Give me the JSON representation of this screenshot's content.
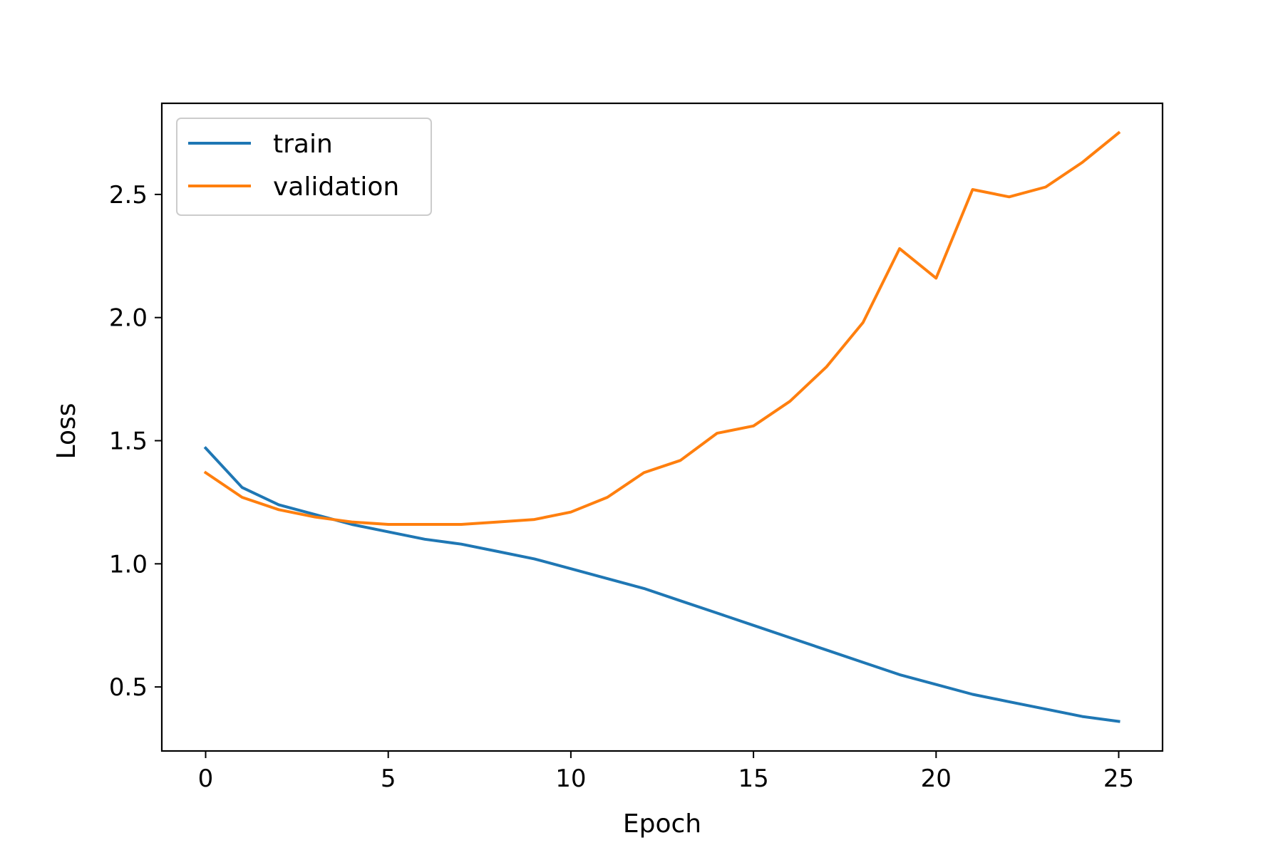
{
  "chart_data": {
    "type": "line",
    "title": "",
    "xlabel": "Epoch",
    "ylabel": "Loss",
    "xlim": [
      -1.2,
      26.2
    ],
    "ylim": [
      0.24,
      2.87
    ],
    "xticks": [
      0,
      5,
      10,
      15,
      20,
      25
    ],
    "yticks": [
      0.5,
      1.0,
      1.5,
      2.0,
      2.5
    ],
    "xtick_labels": [
      "0",
      "5",
      "10",
      "15",
      "20",
      "25"
    ],
    "ytick_labels": [
      "0.5",
      "1.0",
      "1.5",
      "2.0",
      "2.5"
    ],
    "grid": false,
    "legend_position": "top-left",
    "x": [
      0,
      1,
      2,
      3,
      4,
      5,
      6,
      7,
      8,
      9,
      10,
      11,
      12,
      13,
      14,
      15,
      16,
      17,
      18,
      19,
      20,
      21,
      22,
      23,
      24,
      25
    ],
    "series": [
      {
        "name": "train",
        "color": "#1f77b4",
        "values": [
          1.47,
          1.31,
          1.24,
          1.2,
          1.16,
          1.13,
          1.1,
          1.08,
          1.05,
          1.02,
          0.98,
          0.94,
          0.9,
          0.85,
          0.8,
          0.75,
          0.7,
          0.65,
          0.6,
          0.55,
          0.51,
          0.47,
          0.44,
          0.41,
          0.38,
          0.36
        ]
      },
      {
        "name": "validation",
        "color": "#ff7f0e",
        "values": [
          1.37,
          1.27,
          1.22,
          1.19,
          1.17,
          1.16,
          1.16,
          1.16,
          1.17,
          1.18,
          1.21,
          1.27,
          1.37,
          1.42,
          1.53,
          1.56,
          1.66,
          1.8,
          1.98,
          2.28,
          2.16,
          2.52,
          2.49,
          2.53,
          2.63,
          2.75
        ]
      }
    ]
  }
}
